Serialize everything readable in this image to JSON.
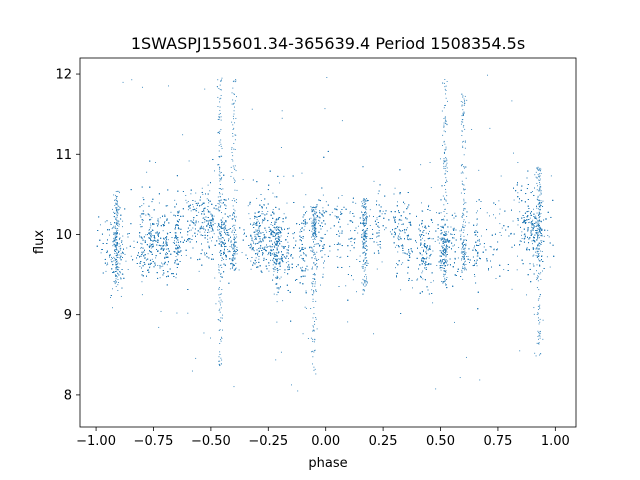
{
  "chart_data": {
    "type": "scatter",
    "title": "1SWASPJ155601.34-365639.4 Period 1508354.5s",
    "xlabel": "phase",
    "ylabel": "flux",
    "xlim": [
      -1.07,
      1.09
    ],
    "ylim": [
      7.6,
      12.2
    ],
    "xticks": [
      -1.0,
      -0.75,
      -0.5,
      -0.25,
      0.0,
      0.25,
      0.5,
      0.75,
      1.0
    ],
    "xtick_labels": [
      "−1.00",
      "−0.75",
      "−0.50",
      "−0.25",
      "0.00",
      "0.25",
      "0.50",
      "0.75",
      "1.00"
    ],
    "yticks": [
      8,
      9,
      10,
      11,
      12
    ],
    "ytick_labels": [
      "8",
      "9",
      "10",
      "11",
      "12"
    ],
    "grid": false,
    "point_color": "#1f77b4",
    "series": [
      {
        "x_range": [
          -1.0,
          1.0
        ],
        "baseline_flux": 9.95,
        "scatter_sd": 0.3,
        "approx_point_count": 9000,
        "descriptive_note": "dense band of points around flux 9.9-10.1 spanning phase -1 to 1, with vertical streaks of outliers reaching up to 12 (near phase -0.45, -0.4, 0.52, 0.6) and down to ~8 (near phase -0.45, -0.05, 0.93)"
      }
    ]
  }
}
